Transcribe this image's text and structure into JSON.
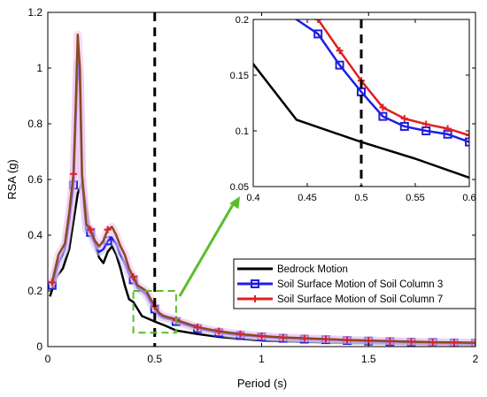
{
  "chart_data": [
    {
      "type": "line",
      "title": "",
      "xlabel": "Period (s)",
      "ylabel": "RSA (g)",
      "xlim": [
        0,
        2
      ],
      "ylim": [
        0,
        1.2
      ],
      "xticks": [
        "0",
        "0.5",
        "1",
        "1.5",
        "2"
      ],
      "yticks": [
        "0",
        "0.2",
        "0.4",
        "0.6",
        "0.8",
        "1",
        "1.2"
      ],
      "vline_x": 0.5,
      "zoom_box": {
        "x": [
          0.4,
          0.6
        ],
        "y": [
          0.05,
          0.2
        ]
      },
      "legend_placement": "lower-right",
      "series": [
        {
          "name": "Bedrock Motion",
          "color": "#000000",
          "marker": "none",
          "x": [
            0.01,
            0.04,
            0.07,
            0.1,
            0.12,
            0.14,
            0.16,
            0.18,
            0.2,
            0.22,
            0.24,
            0.26,
            0.28,
            0.3,
            0.32,
            0.34,
            0.36,
            0.38,
            0.4,
            0.44,
            0.5,
            0.55,
            0.6,
            0.7,
            0.8,
            0.9,
            1.0,
            1.2,
            1.4,
            1.6,
            1.8,
            2.0
          ],
          "y": [
            0.18,
            0.25,
            0.28,
            0.35,
            0.45,
            0.55,
            0.59,
            0.5,
            0.4,
            0.37,
            0.32,
            0.3,
            0.34,
            0.36,
            0.33,
            0.28,
            0.22,
            0.17,
            0.16,
            0.11,
            0.09,
            0.075,
            0.058,
            0.045,
            0.035,
            0.028,
            0.022,
            0.017,
            0.013,
            0.011,
            0.009,
            0.008
          ]
        },
        {
          "name": "Soil Surface Motion of Soil Column 3",
          "color": "#1f1fe0",
          "marker": "square",
          "x": [
            0.02,
            0.05,
            0.08,
            0.1,
            0.12,
            0.13,
            0.14,
            0.15,
            0.16,
            0.18,
            0.2,
            0.22,
            0.24,
            0.26,
            0.28,
            0.3,
            0.32,
            0.34,
            0.36,
            0.38,
            0.4,
            0.42,
            0.44,
            0.46,
            0.48,
            0.5,
            0.52,
            0.54,
            0.56,
            0.58,
            0.6,
            0.7,
            0.8,
            0.9,
            1.0,
            1.1,
            1.2,
            1.3,
            1.4,
            1.5,
            1.6,
            1.7,
            1.8,
            1.9,
            2.0
          ],
          "y": [
            0.22,
            0.3,
            0.35,
            0.45,
            0.58,
            0.8,
            1.02,
            0.95,
            0.6,
            0.42,
            0.41,
            0.37,
            0.34,
            0.35,
            0.38,
            0.39,
            0.37,
            0.33,
            0.3,
            0.26,
            0.24,
            0.21,
            0.2,
            0.187,
            0.159,
            0.135,
            0.113,
            0.104,
            0.1,
            0.097,
            0.09,
            0.065,
            0.05,
            0.04,
            0.035,
            0.03,
            0.027,
            0.025,
            0.022,
            0.02,
            0.018,
            0.016,
            0.015,
            0.013,
            0.012
          ]
        },
        {
          "name": "Soil Surface Motion of Soil Column 7",
          "color": "#e02020",
          "marker": "plus",
          "x": [
            0.02,
            0.05,
            0.08,
            0.1,
            0.12,
            0.13,
            0.14,
            0.15,
            0.16,
            0.18,
            0.2,
            0.22,
            0.24,
            0.26,
            0.28,
            0.3,
            0.32,
            0.34,
            0.36,
            0.38,
            0.4,
            0.42,
            0.44,
            0.46,
            0.48,
            0.5,
            0.52,
            0.54,
            0.56,
            0.58,
            0.6,
            0.7,
            0.8,
            0.9,
            1.0,
            1.1,
            1.2,
            1.3,
            1.4,
            1.5,
            1.6,
            1.7,
            1.8,
            1.9,
            2.0
          ],
          "y": [
            0.23,
            0.33,
            0.37,
            0.48,
            0.62,
            0.85,
            1.12,
            1.0,
            0.62,
            0.44,
            0.42,
            0.38,
            0.36,
            0.38,
            0.42,
            0.43,
            0.4,
            0.36,
            0.33,
            0.28,
            0.25,
            0.22,
            0.21,
            0.2,
            0.172,
            0.145,
            0.121,
            0.111,
            0.106,
            0.102,
            0.096,
            0.07,
            0.055,
            0.045,
            0.038,
            0.033,
            0.03,
            0.027,
            0.024,
            0.022,
            0.02,
            0.018,
            0.016,
            0.015,
            0.014
          ]
        }
      ]
    },
    {
      "type": "line",
      "title": "",
      "xlim": [
        0.4,
        0.6
      ],
      "ylim": [
        0.05,
        0.2
      ],
      "xticks": [
        "0.4",
        "0.45",
        "0.5",
        "0.55",
        "0.6"
      ],
      "yticks": [
        "0.05",
        "0.1",
        "0.15",
        "0.2"
      ],
      "vline_x": 0.5,
      "series_ref": [
        "Bedrock Motion",
        "Soil Surface Motion of Soil Column 3",
        "Soil Surface Motion of Soil Column 7"
      ]
    }
  ]
}
